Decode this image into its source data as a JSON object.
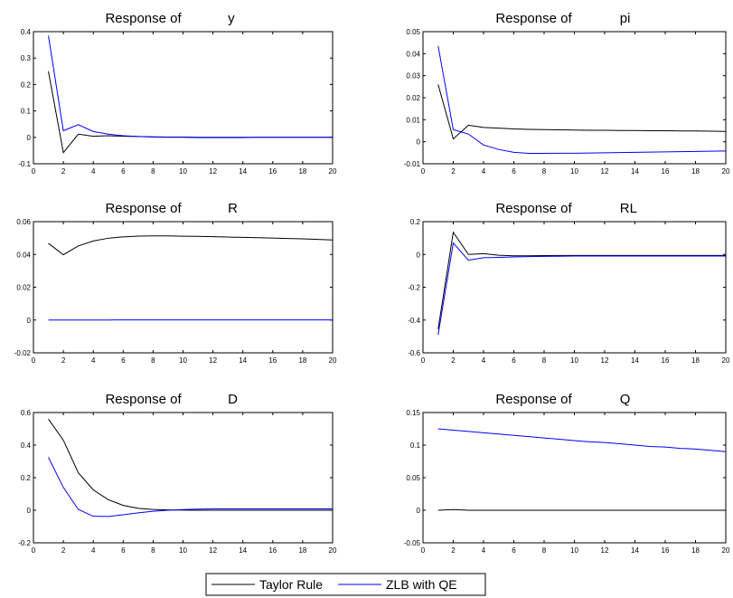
{
  "chart_data": [
    {
      "type": "line",
      "title_prefix": "Response of",
      "variable": "y",
      "x": [
        1,
        2,
        3,
        4,
        5,
        6,
        7,
        8,
        9,
        10,
        11,
        12,
        13,
        14,
        15,
        16,
        17,
        18,
        19,
        20
      ],
      "xlim": [
        0,
        20
      ],
      "ylim": [
        -0.1,
        0.4
      ],
      "xticks": [
        0,
        2,
        4,
        6,
        8,
        10,
        12,
        14,
        16,
        18,
        20
      ],
      "yticks": [
        -0.1,
        0,
        0.1,
        0.2,
        0.3,
        0.4
      ],
      "ytick_labels": [
        "-0.1",
        "0",
        "0.1",
        "0.2",
        "0.3",
        "0.4"
      ],
      "series": [
        {
          "name": "Taylor Rule",
          "color": "#000000",
          "values": [
            0.25,
            -0.058,
            0.012,
            0.004,
            0.006,
            0.004,
            0.003,
            0.002,
            0.001,
            0.001,
            0.0,
            0.0,
            0.0,
            0.0,
            0.0,
            0.0,
            0.0,
            0.0,
            0.0,
            0.0
          ]
        },
        {
          "name": "ZLB with QE",
          "color": "#0000ff",
          "values": [
            0.385,
            0.025,
            0.048,
            0.022,
            0.012,
            0.006,
            0.003,
            0.001,
            0.0,
            0.0,
            -0.001,
            -0.001,
            -0.001,
            -0.001,
            0.0,
            0.0,
            0.0,
            0.0,
            0.0,
            0.0
          ]
        }
      ]
    },
    {
      "type": "line",
      "title_prefix": "Response of",
      "variable": "pi",
      "x": [
        1,
        2,
        3,
        4,
        5,
        6,
        7,
        8,
        9,
        10,
        11,
        12,
        13,
        14,
        15,
        16,
        17,
        18,
        19,
        20
      ],
      "xlim": [
        0,
        20
      ],
      "ylim": [
        -0.01,
        0.05
      ],
      "xticks": [
        0,
        2,
        4,
        6,
        8,
        10,
        12,
        14,
        16,
        18,
        20
      ],
      "yticks": [
        -0.01,
        0,
        0.01,
        0.02,
        0.03,
        0.04,
        0.05
      ],
      "ytick_labels": [
        "-0.01",
        "0",
        "0.01",
        "0.02",
        "0.03",
        "0.04",
        "0.05"
      ],
      "series": [
        {
          "name": "Taylor Rule",
          "color": "#000000",
          "values": [
            0.026,
            0.0013,
            0.0075,
            0.0065,
            0.0062,
            0.0058,
            0.0056,
            0.0055,
            0.0054,
            0.0053,
            0.0052,
            0.0052,
            0.0051,
            0.0051,
            0.005,
            0.005,
            0.0049,
            0.0049,
            0.0048,
            0.0047
          ]
        },
        {
          "name": "ZLB with QE",
          "color": "#0000ff",
          "values": [
            0.0435,
            0.0055,
            0.0035,
            -0.0015,
            -0.0035,
            -0.0048,
            -0.0053,
            -0.0053,
            -0.0052,
            -0.0052,
            -0.0051,
            -0.005,
            -0.0049,
            -0.0048,
            -0.0047,
            -0.0046,
            -0.0045,
            -0.0044,
            -0.0043,
            -0.0042
          ]
        }
      ]
    },
    {
      "type": "line",
      "title_prefix": "Response of",
      "variable": "R",
      "x": [
        1,
        2,
        3,
        4,
        5,
        6,
        7,
        8,
        9,
        10,
        11,
        12,
        13,
        14,
        15,
        16,
        17,
        18,
        19,
        20
      ],
      "xlim": [
        0,
        20
      ],
      "ylim": [
        -0.02,
        0.06
      ],
      "xticks": [
        0,
        2,
        4,
        6,
        8,
        10,
        12,
        14,
        16,
        18,
        20
      ],
      "yticks": [
        -0.02,
        0,
        0.02,
        0.04,
        0.06
      ],
      "ytick_labels": [
        "-0.02",
        "0",
        "0.02",
        "0.04",
        "0.06"
      ],
      "series": [
        {
          "name": "Taylor Rule",
          "color": "#000000",
          "values": [
            0.0468,
            0.0398,
            0.0452,
            0.0482,
            0.0499,
            0.0507,
            0.0512,
            0.0513,
            0.0513,
            0.0511,
            0.051,
            0.0508,
            0.0506,
            0.0504,
            0.0502,
            0.05,
            0.0497,
            0.0495,
            0.0492,
            0.0488
          ]
        },
        {
          "name": "ZLB with QE",
          "color": "#0000ff",
          "values": [
            0.0,
            0.0,
            0.0,
            0.0,
            0.0,
            0.0001,
            0.0001,
            0.0001,
            0.0001,
            0.0001,
            0.0001,
            0.0001,
            0.0001,
            0.0001,
            0.0001,
            0.0001,
            0.0001,
            0.0001,
            0.0001,
            0.0001
          ]
        }
      ]
    },
    {
      "type": "line",
      "title_prefix": "Response of",
      "variable": "RL",
      "x": [
        1,
        2,
        3,
        4,
        5,
        6,
        7,
        8,
        9,
        10,
        11,
        12,
        13,
        14,
        15,
        16,
        17,
        18,
        19,
        20
      ],
      "xlim": [
        0,
        20
      ],
      "ylim": [
        -0.6,
        0.2
      ],
      "xticks": [
        0,
        2,
        4,
        6,
        8,
        10,
        12,
        14,
        16,
        18,
        20
      ],
      "yticks": [
        -0.6,
        -0.4,
        -0.2,
        0,
        0.2
      ],
      "ytick_labels": [
        "-0.6",
        "-0.4",
        "-0.2",
        "0",
        "0.2"
      ],
      "series": [
        {
          "name": "Taylor Rule",
          "color": "#000000",
          "values": [
            -0.455,
            0.135,
            0.0,
            0.005,
            -0.005,
            -0.008,
            -0.008,
            -0.007,
            -0.006,
            -0.006,
            -0.006,
            -0.006,
            -0.006,
            -0.006,
            -0.006,
            -0.006,
            -0.006,
            -0.006,
            -0.006,
            -0.006
          ]
        },
        {
          "name": "ZLB with QE",
          "color": "#0000ff",
          "values": [
            -0.49,
            0.07,
            -0.035,
            -0.02,
            -0.018,
            -0.015,
            -0.013,
            -0.012,
            -0.011,
            -0.01,
            -0.01,
            -0.01,
            -0.01,
            -0.01,
            -0.01,
            -0.01,
            -0.01,
            -0.01,
            -0.01,
            -0.01
          ]
        }
      ]
    },
    {
      "type": "line",
      "title_prefix": "Response of",
      "variable": "D",
      "x": [
        1,
        2,
        3,
        4,
        5,
        6,
        7,
        8,
        9,
        10,
        11,
        12,
        13,
        14,
        15,
        16,
        17,
        18,
        19,
        20
      ],
      "xlim": [
        0,
        20
      ],
      "ylim": [
        -0.2,
        0.6
      ],
      "xticks": [
        0,
        2,
        4,
        6,
        8,
        10,
        12,
        14,
        16,
        18,
        20
      ],
      "yticks": [
        -0.2,
        0,
        0.2,
        0.4,
        0.6
      ],
      "ytick_labels": [
        "-0.2",
        "0",
        "0.2",
        "0.4",
        "0.6"
      ],
      "series": [
        {
          "name": "Taylor Rule",
          "color": "#000000",
          "values": [
            0.56,
            0.43,
            0.23,
            0.125,
            0.065,
            0.03,
            0.012,
            0.005,
            0.002,
            0.001,
            0.0,
            0.0,
            0.0,
            0.0,
            0.0,
            0.0,
            0.0,
            0.0,
            0.0,
            0.0
          ]
        },
        {
          "name": "ZLB with QE",
          "color": "#0000ff",
          "values": [
            0.325,
            0.14,
            0.005,
            -0.037,
            -0.038,
            -0.028,
            -0.016,
            -0.006,
            0.0,
            0.004,
            0.007,
            0.008,
            0.008,
            0.008,
            0.008,
            0.008,
            0.008,
            0.008,
            0.008,
            0.008
          ]
        }
      ]
    },
    {
      "type": "line",
      "title_prefix": "Response of",
      "variable": "Q",
      "x": [
        1,
        2,
        3,
        4,
        5,
        6,
        7,
        8,
        9,
        10,
        11,
        12,
        13,
        14,
        15,
        16,
        17,
        18,
        19,
        20
      ],
      "xlim": [
        0,
        20
      ],
      "ylim": [
        -0.05,
        0.15
      ],
      "xticks": [
        0,
        2,
        4,
        6,
        8,
        10,
        12,
        14,
        16,
        18,
        20
      ],
      "yticks": [
        -0.05,
        0,
        0.05,
        0.1,
        0.15
      ],
      "ytick_labels": [
        "-0.05",
        "0",
        "0.05",
        "0.1",
        "0.15"
      ],
      "series": [
        {
          "name": "Taylor Rule",
          "color": "#000000",
          "values": [
            0.0,
            0.001,
            0.0,
            0.0,
            0.0,
            0.0,
            0.0,
            0.0,
            0.0,
            0.0,
            0.0,
            0.0,
            0.0,
            0.0,
            0.0,
            0.0,
            0.0,
            0.0,
            0.0,
            0.0
          ]
        },
        {
          "name": "ZLB with QE",
          "color": "#0000ff",
          "values": [
            0.125,
            0.123,
            0.121,
            0.119,
            0.117,
            0.115,
            0.113,
            0.111,
            0.109,
            0.107,
            0.105,
            0.104,
            0.102,
            0.1,
            0.098,
            0.097,
            0.095,
            0.094,
            0.092,
            0.09
          ]
        }
      ]
    }
  ],
  "legend": {
    "placement": "bottom-center",
    "entries": [
      {
        "label": "Taylor Rule",
        "color": "#000000"
      },
      {
        "label": "ZLB with QE",
        "color": "#0000ff"
      }
    ]
  }
}
